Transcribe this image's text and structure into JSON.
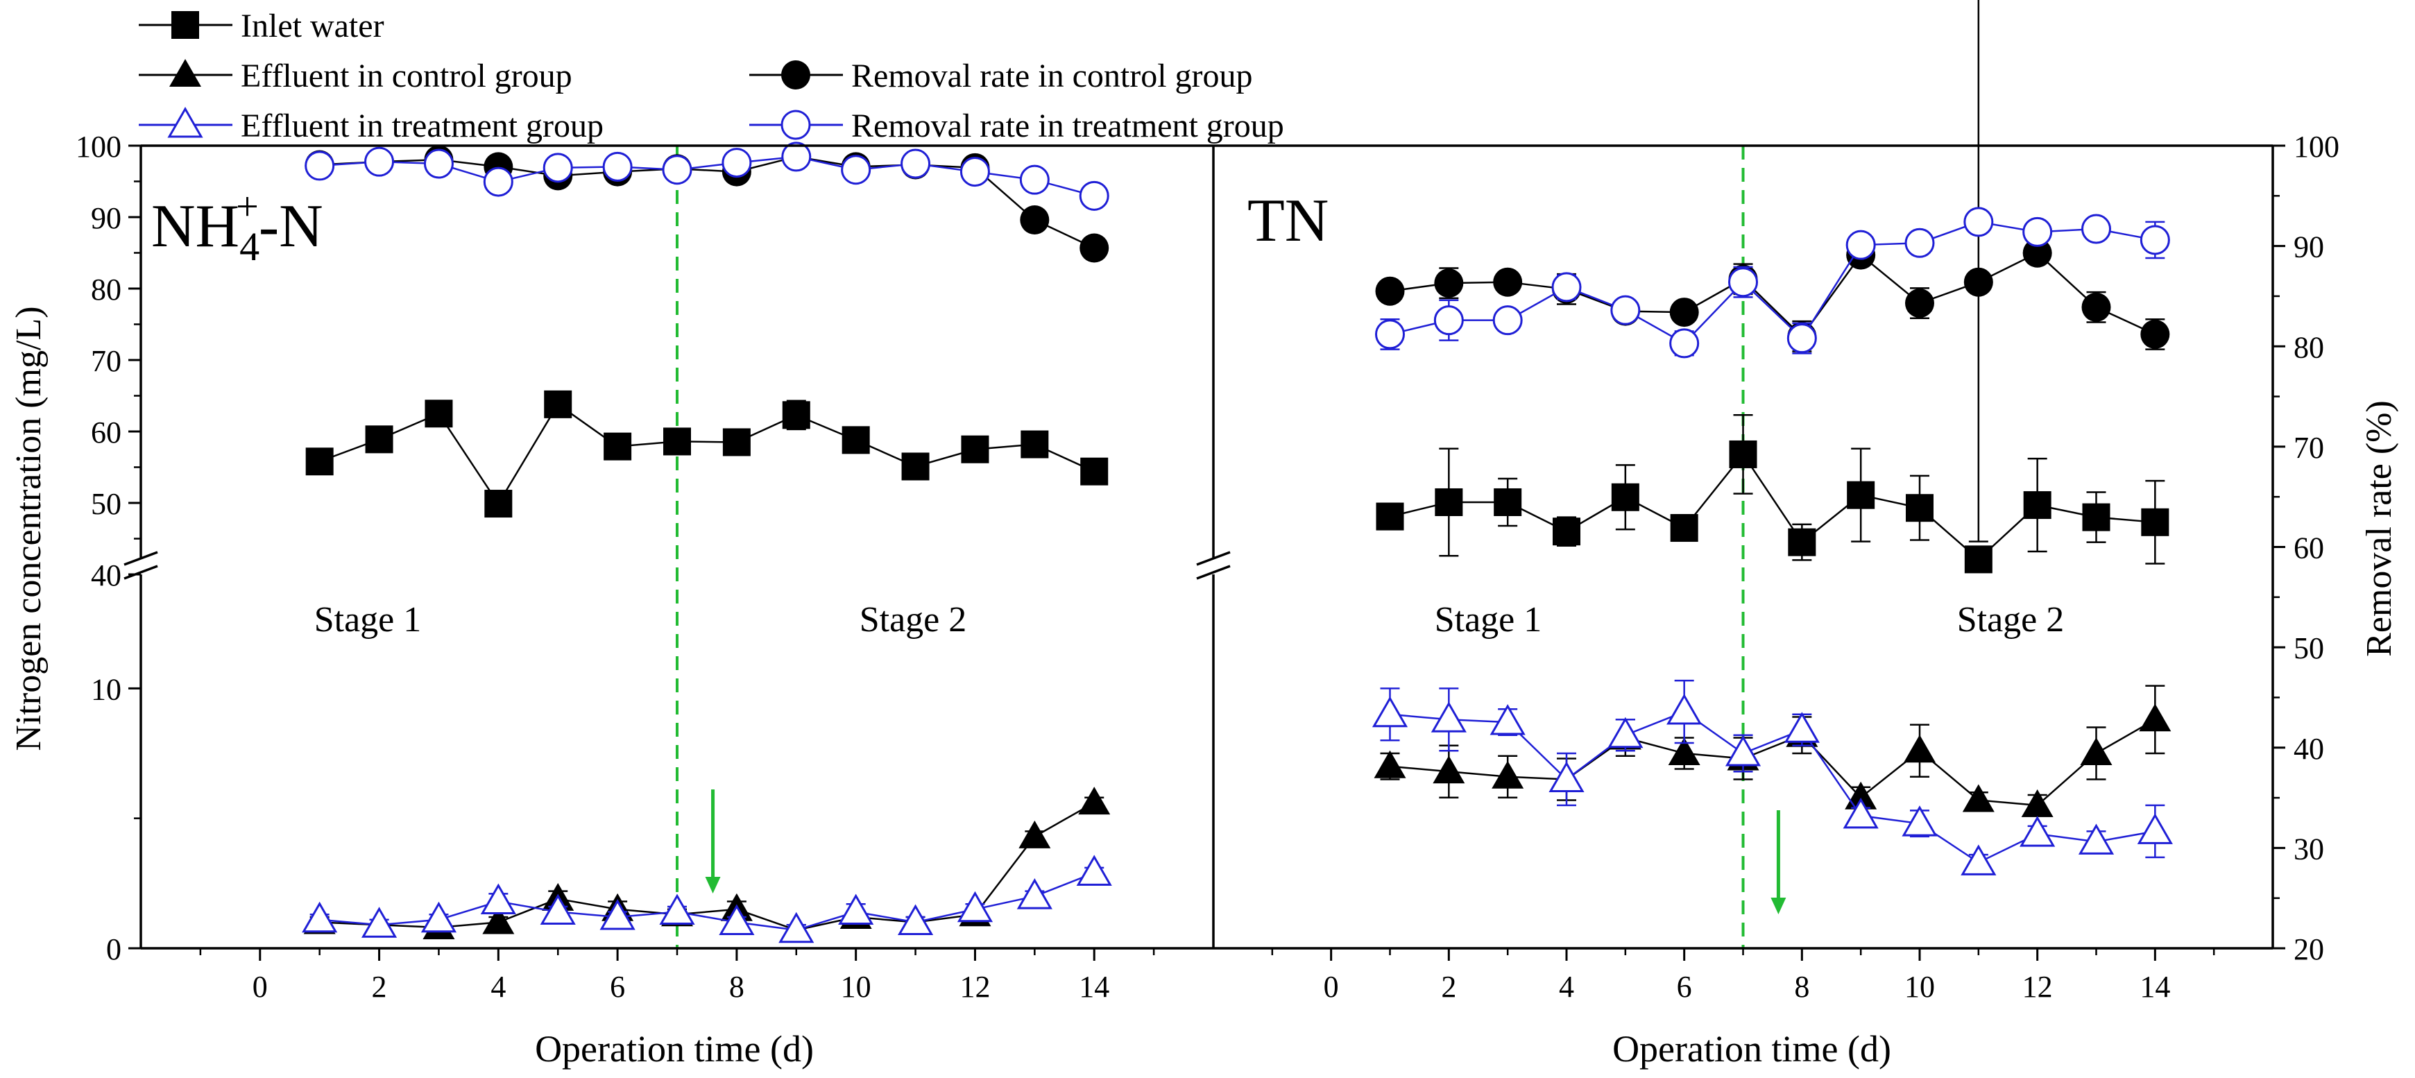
{
  "legend": {
    "items": [
      {
        "label": "Inlet water",
        "marker": "square-filled",
        "color": "#000000"
      },
      {
        "label": "Effluent in control group",
        "marker": "triangle-filled",
        "color": "#000000"
      },
      {
        "label": "Effluent in treatment group",
        "marker": "triangle-open",
        "color": "#1f1fd6"
      },
      {
        "label": "Removal rate in control group",
        "marker": "circle-filled",
        "color": "#000000"
      },
      {
        "label": "Removal rate in treatment group",
        "marker": "circle-open",
        "color": "#1f1fd6"
      }
    ]
  },
  "axes": {
    "y_left_label": "Nitrogen concentration (mg/L)",
    "y_right_label": "Removal rate (%)",
    "x_label": "Operation time (d)",
    "y_left_upper_ticks": [
      "40",
      "50",
      "60",
      "70",
      "80",
      "90",
      "100"
    ],
    "y_left_lower_ticks": [
      "0",
      "10"
    ],
    "y_right_ticks": [
      "20",
      "30",
      "40",
      "50",
      "60",
      "70",
      "80",
      "90",
      "100"
    ],
    "x_ticks": [
      "0",
      "2",
      "4",
      "6",
      "8",
      "10",
      "12",
      "14"
    ]
  },
  "stage_change_day": 7,
  "chart_data": [
    {
      "type": "line",
      "panel_label_main": "NH",
      "panel_label_sub": "4",
      "panel_label_sup": "+",
      "panel_label_tail": "-N",
      "stage_labels": [
        "Stage 1",
        "Stage 2"
      ],
      "arrow_day": 7.6,
      "xlim": [
        -2,
        16
      ],
      "y_left_lower": [
        0,
        15
      ],
      "y_left_upper": [
        40,
        100
      ],
      "y_right": [
        20,
        100
      ],
      "x": [
        1,
        2,
        3,
        4,
        5,
        6,
        7,
        8,
        9,
        10,
        11,
        12,
        13,
        14
      ],
      "series": [
        {
          "name": "Inlet water",
          "axis": "left",
          "values": [
            55.8,
            58.9,
            62.5,
            49.9,
            63.8,
            57.9,
            58.6,
            58.5,
            62.3,
            58.8,
            55.1,
            57.5,
            58.2,
            54.4
          ],
          "errors": [
            0.8,
            1.5,
            1.0,
            1.0,
            1.2,
            1.0,
            1.2,
            0.8,
            2.0,
            1.0,
            0.8,
            1.0,
            1.0,
            0.8
          ]
        },
        {
          "name": "Effluent in control group",
          "axis": "left",
          "values": [
            1.0,
            0.9,
            0.8,
            1.0,
            1.9,
            1.5,
            1.3,
            1.5,
            0.7,
            1.2,
            1.0,
            1.3,
            4.3,
            5.6
          ],
          "errors": [
            0.2,
            0.2,
            0.2,
            0.2,
            0.3,
            0.3,
            0.2,
            0.3,
            0.2,
            0.2,
            0.2,
            0.2,
            0.2,
            0.2
          ]
        },
        {
          "name": "Effluent in treatment group",
          "axis": "left",
          "values": [
            1.1,
            0.9,
            1.1,
            1.8,
            1.4,
            1.2,
            1.4,
            1.0,
            0.7,
            1.4,
            1.0,
            1.5,
            2.0,
            2.9
          ],
          "errors": [
            0.2,
            0.2,
            0.2,
            0.3,
            0.2,
            0.2,
            0.2,
            0.2,
            0.2,
            0.3,
            0.2,
            0.2,
            0.2,
            0.2
          ]
        },
        {
          "name": "Removal rate in control group",
          "axis": "right",
          "values": [
            98.1,
            98.4,
            98.6,
            97.9,
            97.0,
            97.4,
            97.7,
            97.4,
            98.9,
            97.9,
            98.1,
            97.8,
            92.6,
            89.8
          ],
          "errors": [
            0.4,
            0.4,
            0.4,
            0.4,
            0.5,
            0.4,
            0.4,
            0.5,
            0.4,
            0.4,
            0.4,
            0.4,
            0.4,
            0.4
          ]
        },
        {
          "name": "Removal rate in treatment group",
          "axis": "right",
          "values": [
            98.0,
            98.4,
            98.2,
            96.4,
            97.8,
            97.9,
            97.6,
            98.3,
            98.9,
            97.6,
            98.2,
            97.4,
            96.6,
            95.0
          ],
          "errors": [
            0.5,
            0.4,
            0.5,
            0.6,
            0.5,
            0.5,
            0.5,
            0.5,
            0.4,
            0.5,
            0.5,
            0.5,
            0.5,
            0.5
          ]
        }
      ]
    },
    {
      "type": "line",
      "panel_label_main": "TN",
      "panel_label_sub": "",
      "panel_label_sup": "",
      "panel_label_tail": "",
      "stage_labels": [
        "Stage 1",
        "Stage 2"
      ],
      "arrow_day": 7.6,
      "xlim": [
        -2,
        16
      ],
      "y_left_lower": [
        0,
        15
      ],
      "y_left_upper": [
        40,
        100
      ],
      "y_right": [
        20,
        100
      ],
      "x": [
        1,
        2,
        3,
        4,
        5,
        6,
        7,
        8,
        9,
        10,
        11,
        12,
        13,
        14
      ],
      "series": [
        {
          "name": "Inlet water",
          "axis": "left",
          "values": [
            48.1,
            50.1,
            50.1,
            46.0,
            50.8,
            46.5,
            56.8,
            44.5,
            51.1,
            49.3,
            42.1,
            49.7,
            48.0,
            47.3
          ],
          "errors": [
            1.8,
            7.5,
            3.3,
            2.0,
            4.5,
            1.8,
            5.5,
            2.5,
            6.5,
            4.5,
            2.5,
            6.5,
            3.5,
            5.8
          ]
        },
        {
          "name": "Effluent in control group",
          "axis": "left",
          "values": [
            7.0,
            6.8,
            6.6,
            6.5,
            8.1,
            7.5,
            7.3,
            8.2,
            5.8,
            7.6,
            5.7,
            5.5,
            7.5,
            8.8
          ],
          "errors": [
            0.5,
            1.0,
            0.8,
            0.8,
            0.7,
            0.6,
            0.8,
            0.7,
            0.4,
            1.0,
            0.3,
            0.4,
            1.0,
            1.3
          ]
        },
        {
          "name": "Effluent in treatment group",
          "axis": "left",
          "values": [
            9.0,
            8.8,
            8.7,
            6.5,
            8.2,
            9.1,
            7.5,
            8.4,
            5.1,
            4.8,
            3.3,
            4.4,
            4.1,
            4.5
          ],
          "errors": [
            1.0,
            1.2,
            0.5,
            1.0,
            0.6,
            1.2,
            0.7,
            0.6,
            0.3,
            0.5,
            0.3,
            0.3,
            0.4,
            1.0
          ]
        },
        {
          "name": "Removal rate in control group",
          "axis": "right",
          "values": [
            85.5,
            86.3,
            86.4,
            85.7,
            83.5,
            83.4,
            86.7,
            81.0,
            89.1,
            84.3,
            86.4,
            89.3,
            83.9,
            81.2
          ],
          "errors": [
            0.8,
            1.5,
            1.0,
            1.5,
            1.0,
            0.8,
            1.5,
            1.5,
            1.0,
            1.5,
            0.8,
            1.0,
            1.5,
            1.5
          ]
        },
        {
          "name": "Removal rate in treatment group",
          "axis": "right",
          "values": [
            81.2,
            82.6,
            82.6,
            85.9,
            83.6,
            80.3,
            86.4,
            80.8,
            90.1,
            90.3,
            92.4,
            91.4,
            91.7,
            90.6
          ],
          "errors": [
            1.5,
            2.0,
            1.0,
            1.2,
            1.0,
            1.2,
            1.5,
            1.5,
            0.8,
            0.8,
            0.8,
            0.8,
            0.6,
            1.8
          ]
        }
      ]
    }
  ]
}
